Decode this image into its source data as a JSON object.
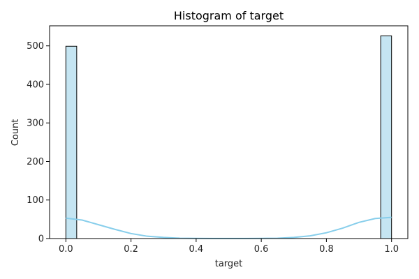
{
  "chart_data": {
    "type": "bar",
    "title": "Histogram of target",
    "xlabel": "target",
    "ylabel": "Count",
    "xlim": [
      -0.05,
      1.05
    ],
    "ylim": [
      0,
      552
    ],
    "x_ticks": [
      0.0,
      0.2,
      0.4,
      0.6,
      0.8,
      1.0
    ],
    "x_tick_labels": [
      "0.0",
      "0.2",
      "0.4",
      "0.6",
      "0.8",
      "1.0"
    ],
    "y_ticks": [
      0,
      100,
      200,
      300,
      400,
      500
    ],
    "y_tick_labels": [
      "0",
      "100",
      "200",
      "300",
      "400",
      "500"
    ],
    "grid": false,
    "bins": [
      {
        "x0": 0.0,
        "x1": 0.0333,
        "count": 499
      },
      {
        "x0": 0.9667,
        "x1": 1.0,
        "count": 526
      }
    ],
    "kde": {
      "x": [
        0.0,
        0.05,
        0.1,
        0.15,
        0.2,
        0.25,
        0.3,
        0.35,
        0.4,
        0.45,
        0.5,
        0.55,
        0.6,
        0.65,
        0.7,
        0.75,
        0.8,
        0.85,
        0.9,
        0.95,
        1.0
      ],
      "y": [
        53,
        48,
        36,
        24,
        13,
        6,
        3,
        1,
        0.5,
        0.3,
        0.3,
        0.3,
        0.5,
        1,
        3,
        7,
        15,
        27,
        42,
        52,
        55
      ]
    },
    "colors": {
      "bar_fill": "#c5e5f2",
      "bar_edge": "#000000",
      "kde_line": "#87ceeb"
    }
  }
}
